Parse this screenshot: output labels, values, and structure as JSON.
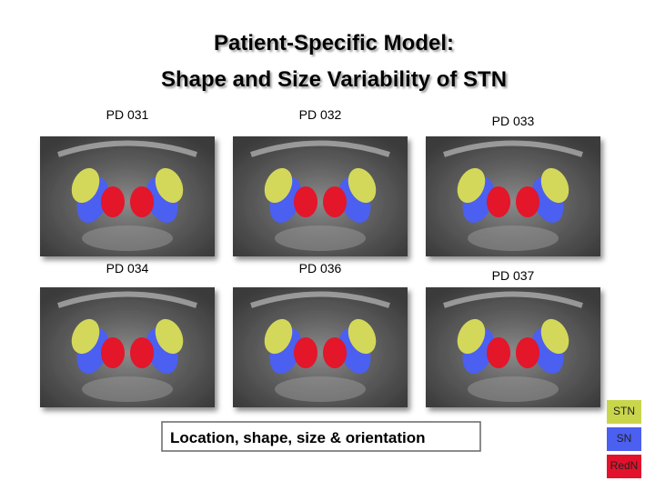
{
  "title": {
    "line1": "Patient-Specific Model:",
    "line2": "Shape and Size Variability of STN"
  },
  "panels": [
    {
      "label": "PD 031"
    },
    {
      "label": "PD 032"
    },
    {
      "label": "PD 033"
    },
    {
      "label": "PD 034"
    },
    {
      "label": "PD 036"
    },
    {
      "label": "PD 037"
    }
  ],
  "caption": "Location, shape, size & orientation",
  "legend": [
    {
      "label": "STN",
      "color": "#c9d64b"
    },
    {
      "label": "SN",
      "color": "#4b5ff0"
    },
    {
      "label": "RedN",
      "color": "#e3122c"
    }
  ]
}
